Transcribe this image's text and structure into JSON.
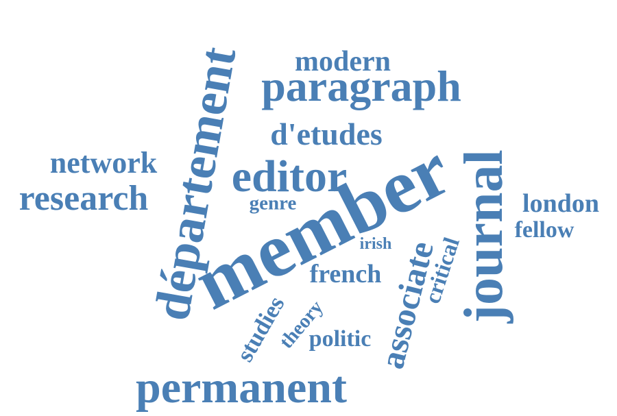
{
  "colors": {
    "word": "#4a7fb5",
    "background": "#ffffff"
  },
  "words": {
    "member": "member",
    "departement": "département",
    "journal": "journal",
    "permanent": "permanent",
    "editor": "editor",
    "paragraph": "paragraph",
    "research": "research",
    "associate": "associate",
    "detudes": "d'etudes",
    "network": "network",
    "modern": "modern",
    "london": "london",
    "studies": "studies",
    "french": "french",
    "fellow": "fellow",
    "critical": "critical",
    "politic": "politic",
    "theory": "theory",
    "genre": "genre",
    "irish": "irish"
  }
}
